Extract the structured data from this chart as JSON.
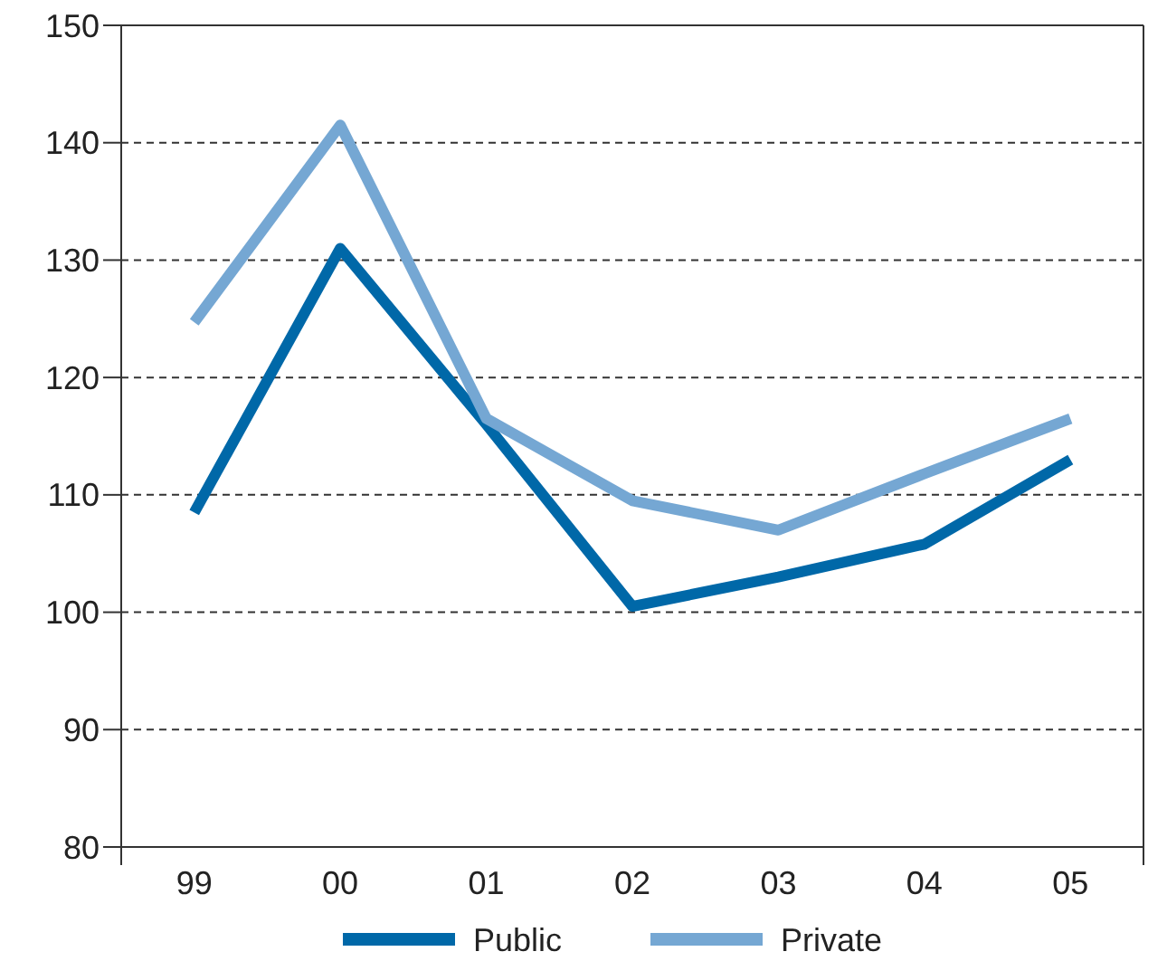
{
  "chart_data": {
    "type": "line",
    "categories": [
      "99",
      "00",
      "01",
      "02",
      "03",
      "04",
      "05"
    ],
    "series": [
      {
        "name": "Public",
        "color": "#0068a8",
        "values": [
          108.5,
          131,
          116,
          100.5,
          103,
          105.8,
          113
        ]
      },
      {
        "name": "Private",
        "color": "#75a7d3",
        "values": [
          124.7,
          141.5,
          116.5,
          109.5,
          107,
          111.8,
          116.5
        ]
      }
    ],
    "ylim": [
      80,
      150
    ],
    "yticks": [
      80,
      90,
      100,
      110,
      120,
      130,
      140,
      150
    ],
    "grid": "y",
    "legend": "bottom",
    "marker": "none",
    "line_style": "solid"
  }
}
